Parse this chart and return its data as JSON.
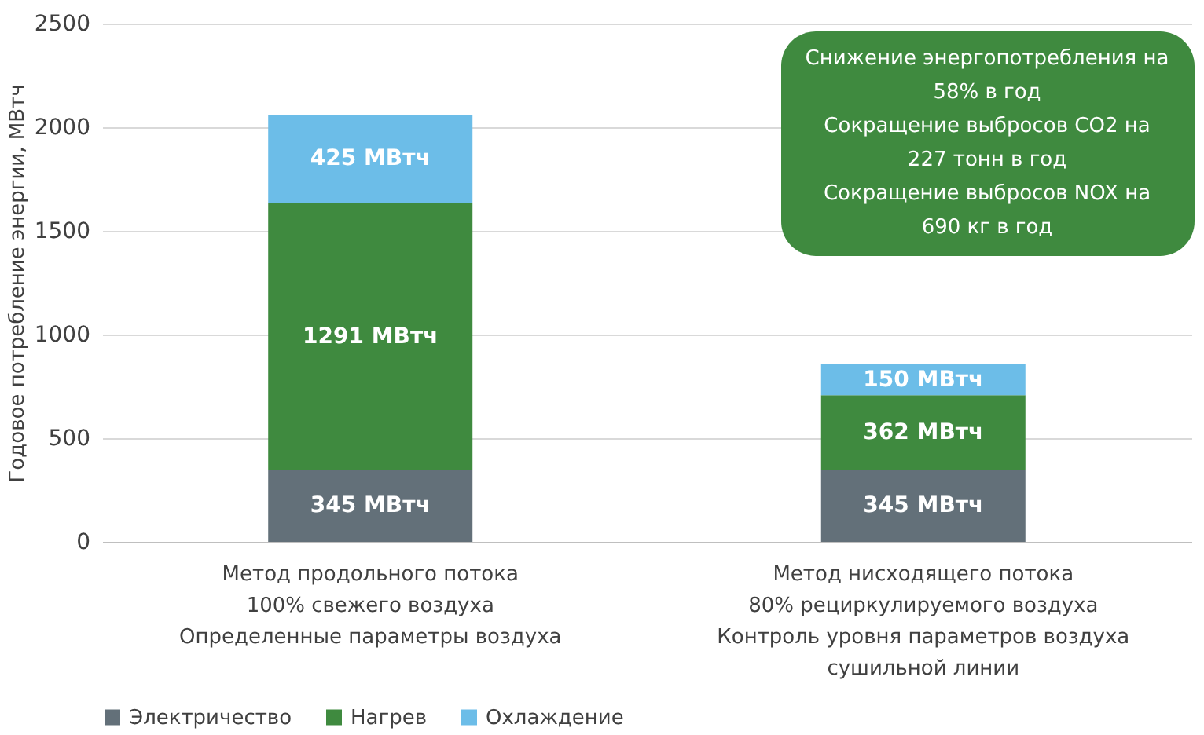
{
  "chart_data": {
    "type": "bar",
    "stacked": true,
    "ylabel": "Годовое потребление энергии, МВтч",
    "categories": [
      "Метод продольного потока\n100% свежего воздуха\nОпределенные параметры воздуха",
      "Метод нисходящего потока\n80% рециркулируемого воздуха\nКонтроль уровня параметров воздуха\nсушильной линии"
    ],
    "series": [
      {
        "name": "Электричество",
        "color": "#637079",
        "values": [
          345,
          345
        ],
        "value_labels": [
          "345 МВтч",
          "345 МВтч"
        ]
      },
      {
        "name": "Нагрев",
        "color": "#3f8a3f",
        "values": [
          1291,
          362
        ],
        "value_labels": [
          "1291 МВтч",
          "362 МВтч"
        ]
      },
      {
        "name": "Охлаждение",
        "color": "#6cbde8",
        "values": [
          425,
          150
        ],
        "value_labels": [
          "425 МВтч",
          "150 МВтч"
        ]
      }
    ],
    "ylim": [
      0,
      2500
    ],
    "yticks": [
      0,
      500,
      1000,
      1500,
      2000,
      2500
    ],
    "grid": "y",
    "legend": "bottom",
    "annotations": [
      "Снижение энергопотребления на\n58% в год\nСокращение выбросов CO2 на\n227 тонн в год\nСокращение выбросов NOX на\n690 кг в год"
    ]
  }
}
